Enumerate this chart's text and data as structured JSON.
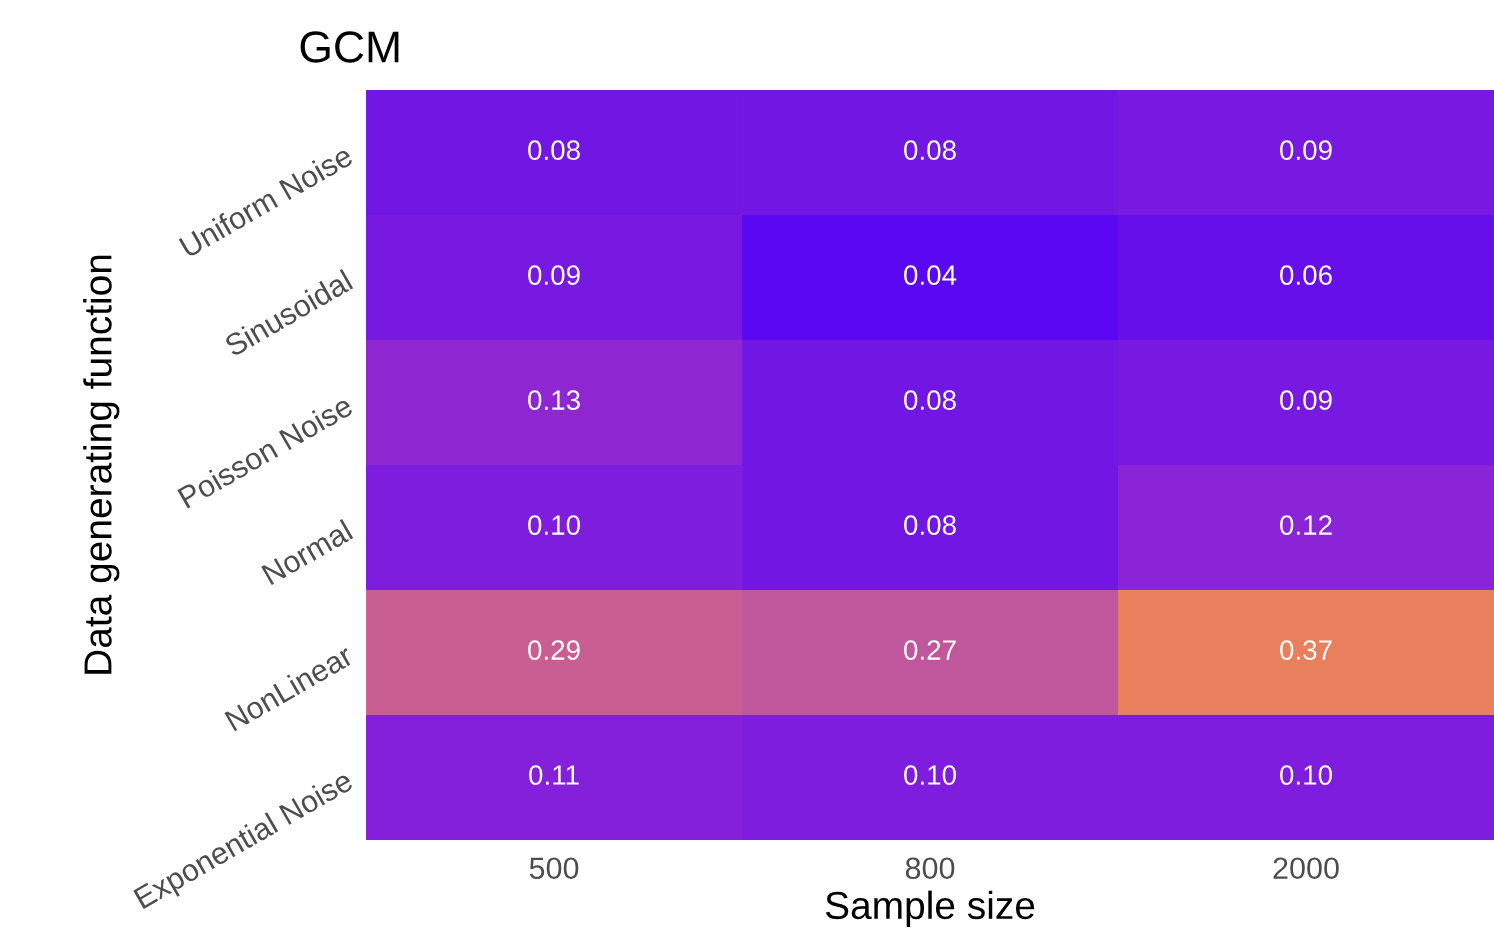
{
  "chart_data": {
    "type": "heatmap",
    "title": "GCM",
    "xlabel": "Sample size",
    "ylabel": "Data generating function",
    "categories": [
      "500",
      "800",
      "2000"
    ],
    "y_categories": [
      "Uniform Noise",
      "Sinusoidal",
      "Poisson Noise",
      "Normal",
      "NonLinear",
      "Exponential Noise"
    ],
    "cells": [
      [
        0.08,
        0.08,
        0.09
      ],
      [
        0.09,
        0.04,
        0.06
      ],
      [
        0.13,
        0.08,
        0.09
      ],
      [
        0.1,
        0.08,
        0.12
      ],
      [
        0.29,
        0.27,
        0.37
      ],
      [
        0.11,
        0.1,
        0.1
      ]
    ],
    "cell_labels": [
      [
        "0.08",
        "0.08",
        "0.09"
      ],
      [
        "0.09",
        "0.04",
        "0.06"
      ],
      [
        "0.13",
        "0.08",
        "0.09"
      ],
      [
        "0.10",
        "0.08",
        "0.12"
      ],
      [
        "0.29",
        "0.27",
        "0.37"
      ],
      [
        "0.11",
        "0.10",
        "0.10"
      ]
    ]
  }
}
